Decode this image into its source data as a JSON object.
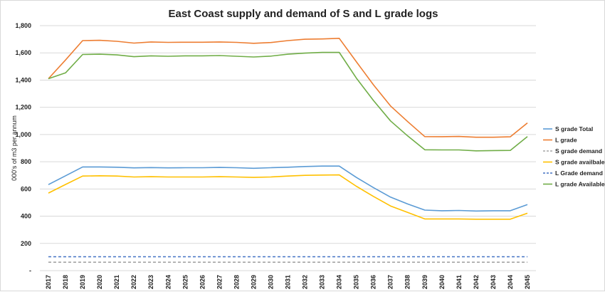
{
  "chart_data": {
    "type": "line",
    "title": "East Coast supply and demand of S and L grade logs",
    "xlabel": "",
    "ylabel": "000's of m3 per annum",
    "ylim": [
      0,
      1800
    ],
    "yticks": [
      0,
      200,
      400,
      600,
      800,
      1000,
      1200,
      1400,
      1600,
      1800
    ],
    "ytick_labels": [
      "-",
      "200",
      "400",
      "600",
      "800",
      "1,000",
      "1,200",
      "1,400",
      "1,600",
      "1,800"
    ],
    "grid": true,
    "legend_position": "right",
    "categories": [
      "2017",
      "2018",
      "2019",
      "2020",
      "2021",
      "2022",
      "2023",
      "2024",
      "2025",
      "2026",
      "2027",
      "2028",
      "2029",
      "2030",
      "2031",
      "2032",
      "2033",
      "2034",
      "2035",
      "2036",
      "2037",
      "2038",
      "2039",
      "2040",
      "2041",
      "2042",
      "2043",
      "2044",
      "2045"
    ],
    "series": [
      {
        "name": "S grade Total",
        "color": "#5b9bd5",
        "dash": "solid",
        "values": [
          632,
          697,
          762,
          762,
          760,
          755,
          757,
          755,
          756,
          756,
          758,
          756,
          752,
          756,
          760,
          765,
          768,
          768,
          685,
          610,
          540,
          490,
          445,
          440,
          442,
          438,
          440,
          440,
          485
        ]
      },
      {
        "name": "L grade",
        "color": "#ed7d31",
        "dash": "solid",
        "values": [
          1410,
          1548,
          1690,
          1692,
          1685,
          1672,
          1680,
          1677,
          1678,
          1678,
          1680,
          1677,
          1670,
          1676,
          1690,
          1700,
          1702,
          1707,
          1535,
          1365,
          1210,
          1095,
          985,
          984,
          986,
          980,
          980,
          983,
          1085
        ]
      },
      {
        "name": "S grade demand",
        "color": "#a5a5a5",
        "dash": "dashed",
        "values": [
          62,
          62,
          62,
          62,
          62,
          62,
          62,
          62,
          62,
          62,
          62,
          62,
          62,
          62,
          62,
          62,
          62,
          62,
          62,
          62,
          62,
          62,
          62,
          62,
          62,
          62,
          62,
          62,
          62
        ]
      },
      {
        "name": "S grade availbale",
        "color": "#ffc000",
        "dash": "solid",
        "values": [
          570,
          633,
          695,
          697,
          695,
          688,
          690,
          688,
          688,
          688,
          690,
          688,
          685,
          688,
          695,
          700,
          702,
          703,
          620,
          545,
          475,
          428,
          380,
          380,
          380,
          378,
          378,
          378,
          422
        ]
      },
      {
        "name": "L Grade demand",
        "color": "#4472c4",
        "dash": "dashed",
        "values": [
          102,
          102,
          102,
          102,
          102,
          102,
          102,
          102,
          102,
          102,
          102,
          102,
          102,
          102,
          102,
          102,
          102,
          102,
          102,
          102,
          102,
          102,
          102,
          102,
          102,
          102,
          102,
          102,
          102
        ]
      },
      {
        "name": "L grade Available",
        "color": "#70ad47",
        "dash": "solid",
        "values": [
          1410,
          1453,
          1588,
          1590,
          1585,
          1572,
          1578,
          1575,
          1578,
          1578,
          1580,
          1575,
          1570,
          1576,
          1590,
          1598,
          1603,
          1604,
          1415,
          1250,
          1100,
          990,
          888,
          887,
          887,
          880,
          882,
          883,
          985
        ]
      }
    ]
  }
}
